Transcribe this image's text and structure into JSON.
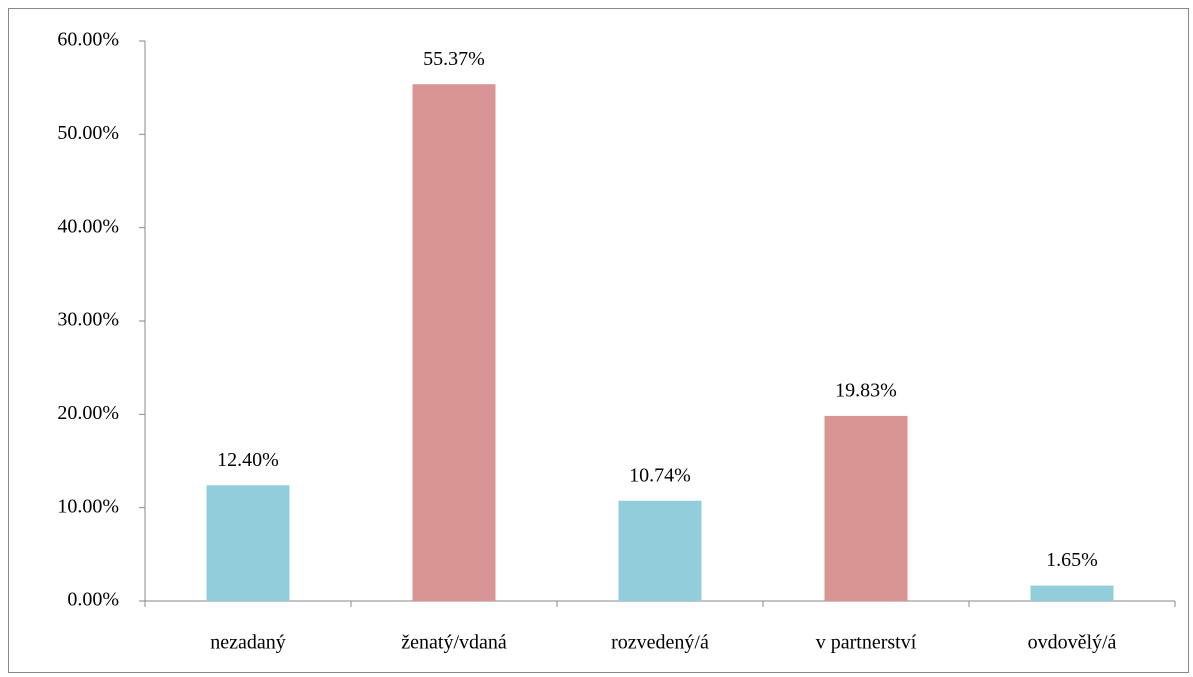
{
  "chart_data": {
    "type": "bar",
    "categories": [
      "nezadaný",
      "ženatý/vdaná",
      "rozvedený/á",
      "v partnerství",
      "ovdovělý/á"
    ],
    "values": [
      12.4,
      55.37,
      10.74,
      19.83,
      1.65
    ],
    "value_labels": [
      "12.40%",
      "55.37%",
      "10.74%",
      "19.83%",
      "1.65%"
    ],
    "colors": [
      "#92cddc",
      "#d99594",
      "#92cddc",
      "#d99594",
      "#92cddc"
    ],
    "ylim": [
      0,
      60
    ],
    "yticks": [
      {
        "value": 0,
        "label": "0.00%"
      },
      {
        "value": 10,
        "label": "10.00%"
      },
      {
        "value": 20,
        "label": "20.00%"
      },
      {
        "value": 30,
        "label": "30.00%"
      },
      {
        "value": 40,
        "label": "40.00%"
      },
      {
        "value": 50,
        "label": "50.00%"
      },
      {
        "value": 60,
        "label": "60.00%"
      }
    ],
    "grid": false
  }
}
